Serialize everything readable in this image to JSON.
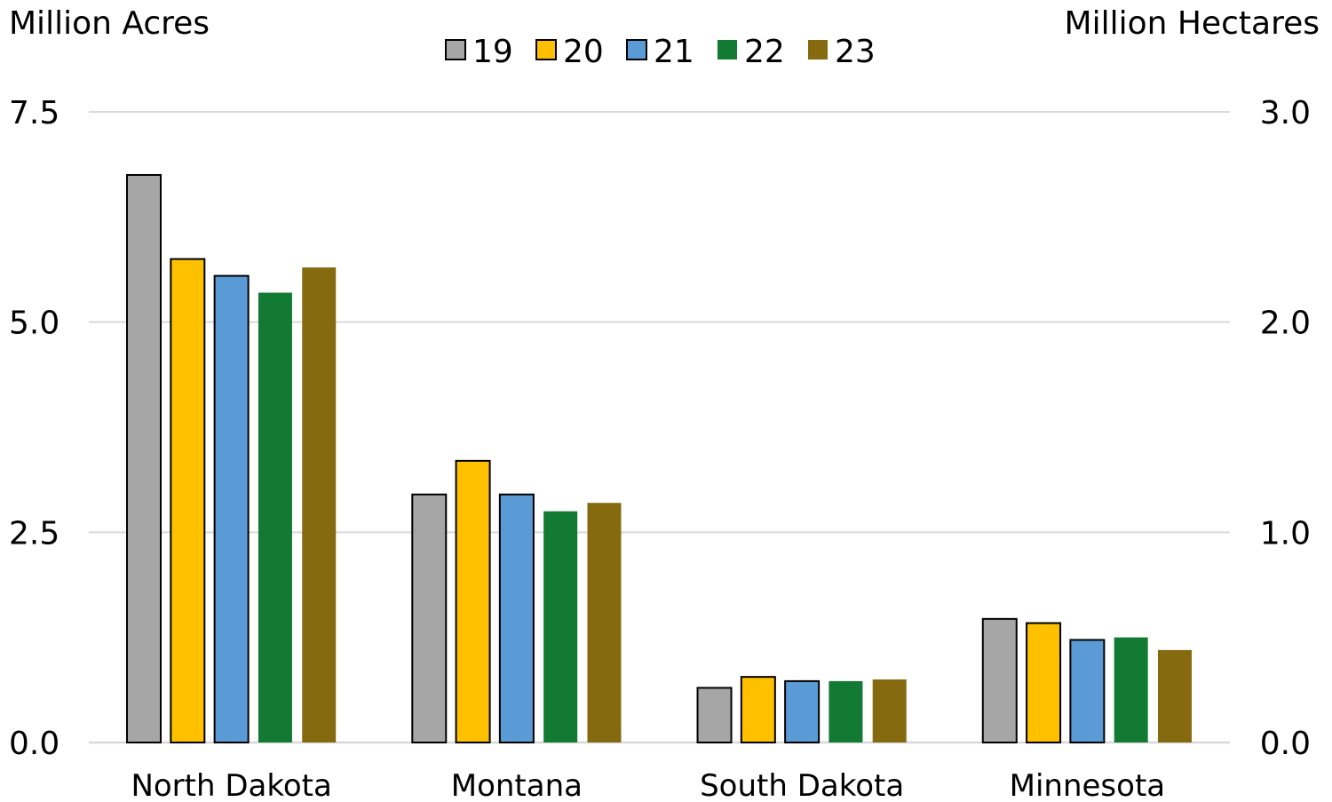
{
  "chart_data": {
    "type": "bar",
    "categories": [
      "North Dakota",
      "Montana",
      "South Dakota",
      "Minnesota"
    ],
    "series": [
      {
        "name": "19",
        "color": "#a6a6a6",
        "outlined": true,
        "values": [
          6.75,
          2.95,
          0.65,
          1.47
        ]
      },
      {
        "name": "20",
        "color": "#ffc000",
        "outlined": true,
        "values": [
          5.75,
          3.35,
          0.78,
          1.42
        ]
      },
      {
        "name": "21",
        "color": "#5b9bd5",
        "outlined": true,
        "values": [
          5.55,
          2.95,
          0.73,
          1.22
        ]
      },
      {
        "name": "22",
        "color": "#127a33",
        "outlined": false,
        "values": [
          5.35,
          2.75,
          0.73,
          1.25
        ]
      },
      {
        "name": "23",
        "color": "#866a10",
        "outlined": false,
        "values": [
          5.65,
          2.85,
          0.75,
          1.1
        ]
      }
    ],
    "ylabel_left": "Million Acres",
    "ylabel_right": "Million Hectares",
    "ylim": [
      0,
      7.5
    ],
    "yticks_left": [
      "0.0",
      "2.5",
      "5.0",
      "7.5"
    ],
    "yticks_left_values": [
      0,
      2.5,
      5.0,
      7.5
    ],
    "ylim_right": [
      0,
      3.0
    ],
    "yticks_right": [
      "0.0",
      "1.0",
      "2.0",
      "3.0"
    ],
    "yticks_right_values": [
      0,
      1.0,
      2.0,
      3.0
    ],
    "grid": true,
    "legend": "top-center"
  }
}
